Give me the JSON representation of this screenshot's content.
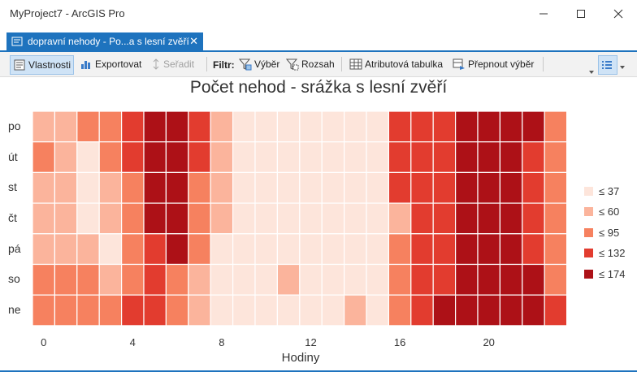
{
  "window": {
    "title": "MyProject7 - ArcGIS Pro"
  },
  "tab": {
    "label": "dopravní nehody - Po...a s lesní zvěří",
    "close": "✕"
  },
  "toolbar": {
    "properties": "Vlastnosti",
    "export": "Exportovat",
    "sort": "Seřadit",
    "filter_label": "Filtr:",
    "selection": "Výběr",
    "extent": "Rozsah",
    "attribute_table": "Atributová tabulka",
    "switch_selection": "Přepnout výběr"
  },
  "chart_data": {
    "type": "heatmap",
    "title": "Počet nehod - srážka s lesní zvěří",
    "xlabel": "Hodiny",
    "ylabel": "",
    "categories_y": [
      "po",
      "út",
      "st",
      "čt",
      "pá",
      "so",
      "ne"
    ],
    "x_ticks": [
      "0",
      "4",
      "8",
      "12",
      "16",
      "20"
    ],
    "x_hours": [
      0,
      1,
      2,
      3,
      4,
      5,
      6,
      7,
      8,
      9,
      10,
      11,
      12,
      13,
      14,
      15,
      16,
      17,
      18,
      19,
      20,
      21,
      22,
      23
    ],
    "legend": [
      {
        "label": "≤ 37",
        "color": "#fde5db"
      },
      {
        "label": "≤ 60",
        "color": "#fbb49c"
      },
      {
        "label": "≤ 95",
        "color": "#f6815f"
      },
      {
        "label": "≤ 132",
        "color": "#e23c2f"
      },
      {
        "label": "≤ 174",
        "color": "#ad1117"
      }
    ],
    "values": [
      [
        55,
        60,
        65,
        70,
        110,
        160,
        165,
        130,
        60,
        25,
        25,
        25,
        25,
        25,
        25,
        25,
        100,
        110,
        125,
        140,
        145,
        160,
        135,
        90
      ],
      [
        65,
        60,
        35,
        65,
        100,
        155,
        165,
        100,
        60,
        25,
        25,
        25,
        25,
        25,
        25,
        25,
        100,
        115,
        130,
        165,
        170,
        155,
        130,
        90
      ],
      [
        60,
        55,
        35,
        60,
        95,
        160,
        165,
        90,
        60,
        25,
        25,
        25,
        25,
        25,
        25,
        25,
        100,
        120,
        130,
        140,
        150,
        165,
        130,
        90
      ],
      [
        55,
        50,
        35,
        55,
        95,
        160,
        165,
        85,
        55,
        25,
        25,
        25,
        25,
        25,
        25,
        25,
        60,
        120,
        130,
        140,
        150,
        165,
        125,
        90
      ],
      [
        55,
        50,
        60,
        35,
        95,
        120,
        165,
        90,
        30,
        25,
        25,
        25,
        25,
        25,
        25,
        25,
        85,
        115,
        125,
        165,
        170,
        165,
        120,
        85
      ],
      [
        90,
        90,
        65,
        60,
        95,
        110,
        85,
        55,
        30,
        25,
        25,
        50,
        25,
        25,
        25,
        25,
        85,
        120,
        130,
        160,
        140,
        160,
        135,
        95
      ],
      [
        95,
        95,
        70,
        85,
        100,
        100,
        80,
        55,
        30,
        25,
        25,
        25,
        25,
        25,
        50,
        25,
        90,
        115,
        140,
        165,
        135,
        160,
        135,
        100
      ]
    ]
  }
}
